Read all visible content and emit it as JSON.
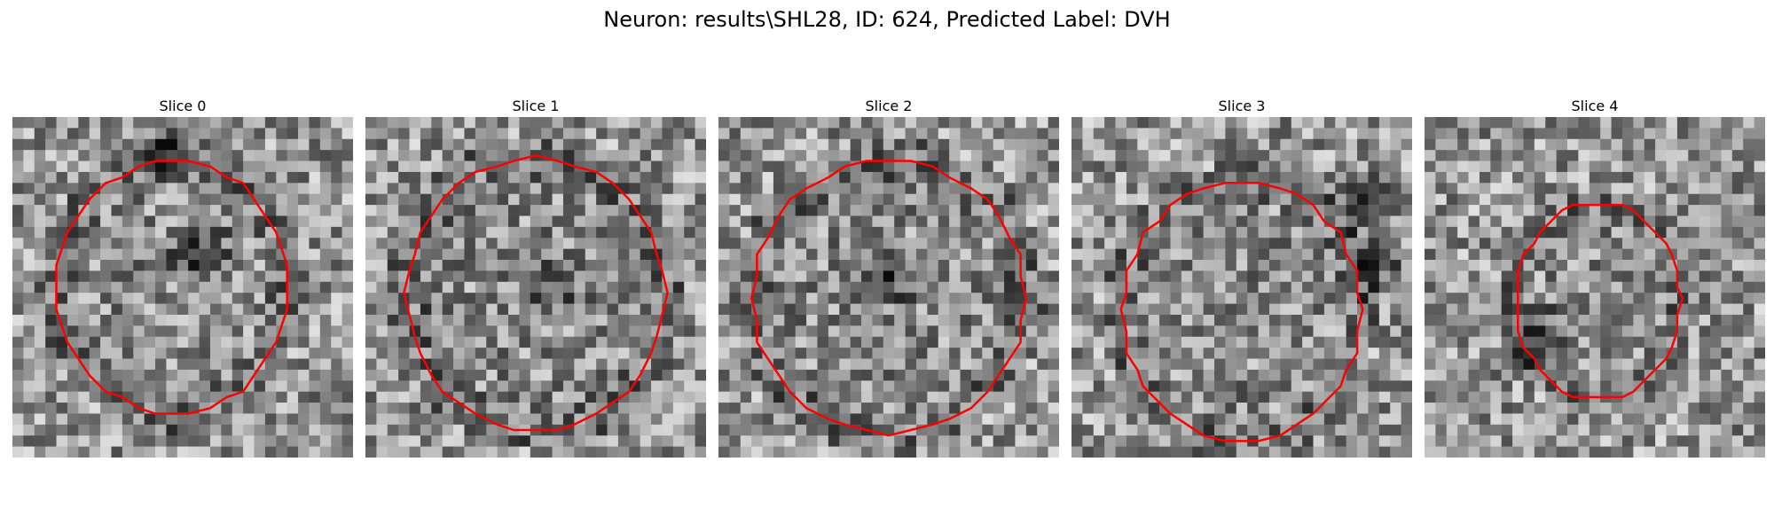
{
  "title": "Neuron: results\\SHL28, ID: 624, Predicted Label: DVH",
  "contour_color": "#ff0000",
  "panels": [
    {
      "label": "Slice 0",
      "seed": 11,
      "center": [
        0.47,
        0.5
      ],
      "radius": [
        0.34,
        0.37
      ],
      "dark": [
        [
          0.55,
          0.4
        ],
        [
          0.45,
          0.1
        ]
      ]
    },
    {
      "label": "Slice 1",
      "seed": 23,
      "center": [
        0.5,
        0.52
      ],
      "radius": [
        0.38,
        0.4
      ],
      "dark": [
        [
          0.55,
          0.5
        ]
      ]
    },
    {
      "label": "Slice 2",
      "seed": 37,
      "center": [
        0.5,
        0.53
      ],
      "radius": [
        0.4,
        0.4
      ],
      "dark": [
        [
          0.52,
          0.47
        ]
      ]
    },
    {
      "label": "Slice 3",
      "seed": 41,
      "center": [
        0.5,
        0.57
      ],
      "radius": [
        0.35,
        0.38
      ],
      "dark": [
        [
          0.85,
          0.25
        ],
        [
          0.9,
          0.45
        ]
      ]
    },
    {
      "label": "Slice 4",
      "seed": 53,
      "center": [
        0.51,
        0.54
      ],
      "radius": [
        0.24,
        0.29
      ],
      "dark": [
        [
          0.35,
          0.65
        ]
      ]
    }
  ]
}
